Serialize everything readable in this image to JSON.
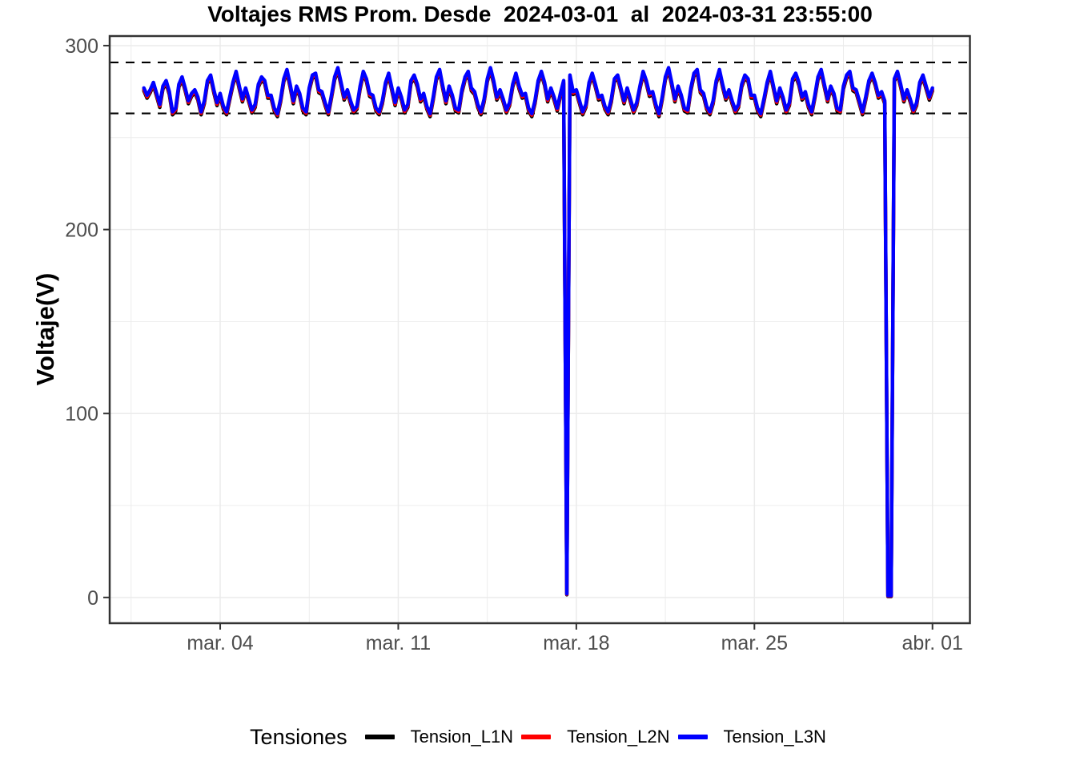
{
  "title": "Voltajes RMS Prom. Desde  2024-03-01  al  2024-03-31 23:55:00",
  "axes": {
    "y_label": "Voltaje(V)",
    "y_ticks": [
      {
        "v": 0,
        "label": "0"
      },
      {
        "v": 100,
        "label": "100"
      },
      {
        "v": 200,
        "label": "200"
      },
      {
        "v": 300,
        "label": "300"
      }
    ],
    "y_minor": [
      50,
      150,
      250
    ],
    "x_ticks": [
      {
        "day": 3,
        "label": "mar. 04"
      },
      {
        "day": 10,
        "label": "mar. 11"
      },
      {
        "day": 17,
        "label": "mar. 18"
      },
      {
        "day": 24,
        "label": "mar. 25"
      },
      {
        "day": 31,
        "label": "abr. 01"
      }
    ],
    "x_minor_days": [
      -0.5,
      6.5,
      13.5,
      20.5,
      27.5
    ],
    "xlim_days": [
      -1.344,
      32.472
    ],
    "ylim": [
      -14.0,
      305.2
    ],
    "grid_color": "#ebebeb",
    "tick_color": "#333333",
    "tick_label_color": "#4d4d4d",
    "border_color": "#333333"
  },
  "limit_lines": {
    "color": "#000000",
    "style": "dashed",
    "values": [
      290.85,
      263.15
    ]
  },
  "legend": {
    "title": "Tensiones",
    "entries": [
      {
        "name": "legend-entry-tension-l1n",
        "label": "Tension_L1N",
        "color": "#000000"
      },
      {
        "name": "legend-entry-tension-l2n",
        "label": "Tension_L2N",
        "color": "#ff0000"
      },
      {
        "name": "legend-entry-tension-l3n",
        "label": "Tension_L3N",
        "color": "#0000ff"
      }
    ]
  },
  "chart_data": {
    "type": "line",
    "title": "Voltajes RMS Prom. Desde  2024-03-01  al  2024-03-31 23:55:00",
    "xlabel": "",
    "ylabel": "Voltaje(V)",
    "x_unit": "days since 2024-03-01 00:00",
    "x_tick_labels": [
      "mar. 04",
      "mar. 11",
      "mar. 18",
      "mar. 25",
      "abr. 01"
    ],
    "y_tick_values": [
      0,
      100,
      200,
      300
    ],
    "legend_position": "bottom",
    "grid": true,
    "sample_hours": [
      0,
      3,
      6,
      9,
      12,
      15,
      18,
      21
    ],
    "daily_values": [
      [
        277,
        273,
        276,
        280,
        274,
        268,
        278,
        281
      ],
      [
        275,
        264,
        266,
        279,
        283,
        277,
        270,
        274
      ],
      [
        276,
        272,
        264,
        270,
        281,
        284,
        276,
        269
      ],
      [
        274,
        267,
        264,
        272,
        280,
        286,
        278,
        271
      ],
      [
        277,
        271,
        265,
        268,
        279,
        283,
        281,
        273
      ],
      [
        273,
        266,
        263,
        271,
        282,
        287,
        279,
        270
      ],
      [
        278,
        274,
        266,
        264,
        277,
        284,
        285,
        276
      ],
      [
        275,
        269,
        264,
        273,
        283,
        288,
        280,
        272
      ],
      [
        276,
        270,
        265,
        267,
        278,
        286,
        282,
        274
      ],
      [
        273,
        266,
        264,
        270,
        280,
        285,
        277,
        269
      ],
      [
        277,
        272,
        265,
        268,
        281,
        284,
        279,
        271
      ],
      [
        274,
        267,
        263,
        272,
        283,
        287,
        278,
        270
      ],
      [
        278,
        273,
        266,
        265,
        276,
        283,
        286,
        277
      ],
      [
        275,
        268,
        264,
        271,
        282,
        288,
        281,
        272
      ],
      [
        276,
        271,
        265,
        269,
        279,
        285,
        278,
        273
      ],
      [
        274,
        266,
        263,
        270,
        281,
        286,
        280,
        271
      ],
      [
        277,
        272,
        266,
        274,
        281,
        2,
        284,
        275
      ],
      [
        276,
        270,
        264,
        268,
        280,
        285,
        279,
        272
      ],
      [
        273,
        267,
        264,
        271,
        282,
        284,
        277,
        270
      ],
      [
        277,
        271,
        265,
        269,
        278,
        286,
        281,
        274
      ],
      [
        275,
        268,
        263,
        272,
        283,
        288,
        280,
        271
      ],
      [
        278,
        273,
        266,
        265,
        277,
        285,
        287,
        276
      ],
      [
        274,
        267,
        264,
        270,
        281,
        287,
        279,
        272
      ],
      [
        276,
        270,
        265,
        268,
        279,
        284,
        282,
        273
      ],
      [
        273,
        266,
        263,
        271,
        280,
        286,
        278,
        270
      ],
      [
        277,
        272,
        265,
        269,
        282,
        285,
        280,
        272
      ],
      [
        275,
        268,
        264,
        273,
        283,
        287,
        279,
        271
      ],
      [
        278,
        274,
        266,
        265,
        278,
        284,
        286,
        277
      ],
      [
        276,
        270,
        264,
        272,
        281,
        285,
        280,
        273
      ],
      [
        275,
        270,
        1,
        1,
        282,
        286,
        279,
        271
      ],
      [
        276,
        271,
        265,
        269,
        280,
        284,
        278,
        272
      ]
    ],
    "end_value": 277,
    "series": [
      {
        "name": "Tension_L1N",
        "color": "#000000",
        "offset": -1.6
      },
      {
        "name": "Tension_L2N",
        "color": "#ff0000",
        "offset": -0.8
      },
      {
        "name": "Tension_L3N",
        "color": "#0000ff",
        "offset": 0
      }
    ],
    "events": [
      {
        "series": "all (blue on top)",
        "time_days": 16.625,
        "min_value": 2,
        "description": "dropout to ~2 V near mar. 17 15:00"
      },
      {
        "series": "all (blue on top)",
        "time_days": 29.3,
        "min_value": 1,
        "description": "dropout to ~1 V near mar. 30 06:00-09:00"
      }
    ],
    "limit_lines": [
      290.85,
      263.15
    ]
  }
}
